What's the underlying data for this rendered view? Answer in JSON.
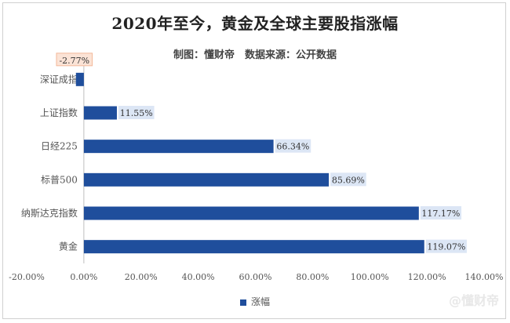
{
  "chart_data": {
    "type": "bar",
    "orientation": "horizontal",
    "title": "2020年至今，黄金及全球主要股指涨幅",
    "subtitle": "制图：懂财帝　数据来源：公开数据",
    "categories": [
      "深证成指",
      "上证指数",
      "日经225",
      "标普500",
      "纳斯达克指数",
      "黄金"
    ],
    "values": [
      -2.77,
      11.55,
      66.34,
      85.69,
      117.17,
      119.07
    ],
    "value_labels": [
      "-2.77%",
      "11.55%",
      "66.34%",
      "85.69%",
      "117.17%",
      "119.07%"
    ],
    "xlim": [
      -20,
      140
    ],
    "xticks": [
      -20,
      0,
      20,
      40,
      60,
      80,
      100,
      120,
      140
    ],
    "xtick_labels": [
      "-20.00%",
      "0.00%",
      "20.00%",
      "40.00%",
      "60.00%",
      "80.00%",
      "100.00%",
      "120.00%",
      "140.00%"
    ],
    "series": [
      {
        "name": "涨幅",
        "values": [
          -2.77,
          11.55,
          66.34,
          85.69,
          117.17,
          119.07
        ]
      }
    ],
    "legend_position": "bottom",
    "grid": false,
    "colors": {
      "bar": "#1f4e9c",
      "label_bg": "#dce6f5",
      "neg_label_bg": "#fbe3d6",
      "neg_label_border": "#f3b89a"
    }
  },
  "watermark": "@懂财帝"
}
